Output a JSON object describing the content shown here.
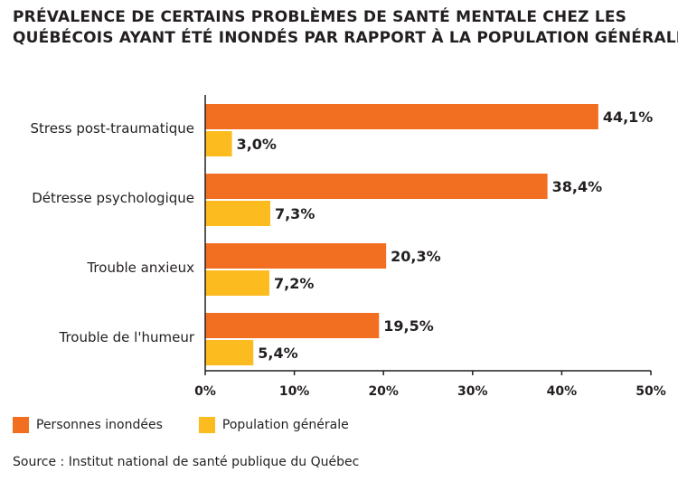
{
  "colors": {
    "series_1": "#f26f21",
    "series_2": "#fcbb1e",
    "text": "#231f20",
    "axis": "#231f20"
  },
  "chart_data": {
    "type": "bar",
    "orientation": "horizontal",
    "title_line1": "PRÉVALENCE DE CERTAINS PROBLÈMES DE SANTÉ MENTALE CHEZ LES",
    "title_line2": "QUÉBÉCOIS AYANT ÉTÉ INONDÉS PAR RAPPORT À LA POPULATION GÉNÉRALE",
    "categories": [
      "Stress post-traumatique",
      "Détresse psychologique",
      "Trouble anxieux",
      "Trouble de l'humeur"
    ],
    "series": [
      {
        "name": "Personnes inondées",
        "values": [
          44.1,
          38.4,
          20.3,
          19.5
        ],
        "labels": [
          "44,1%",
          "38,4%",
          "20,3%",
          "19,5%"
        ]
      },
      {
        "name": "Population générale",
        "values": [
          3.0,
          7.3,
          7.2,
          5.4
        ],
        "labels": [
          "3,0%",
          "7,3%",
          "7,2%",
          "5,4%"
        ]
      }
    ],
    "xlim": [
      0,
      50
    ],
    "xticks": [
      0,
      10,
      20,
      30,
      40,
      50
    ],
    "xtick_labels": [
      "0%",
      "10%",
      "20%",
      "30%",
      "40%",
      "50%"
    ],
    "grid": false,
    "legend_position": "bottom-left"
  },
  "source": "Source : Institut national de santé publique du Québec"
}
